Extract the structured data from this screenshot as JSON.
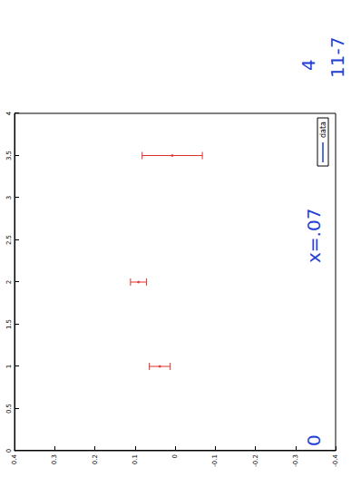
{
  "chart_data": {
    "type": "errorbar",
    "series": [
      {
        "name": "data",
        "color": "#e0302a",
        "marker": "point",
        "x": [
          1,
          2,
          3.5
        ],
        "values": [
          0.038,
          0.091,
          0.007
        ],
        "errors": [
          0.026,
          0.02,
          0.075
        ]
      }
    ],
    "xlim": [
      0,
      4
    ],
    "xticks": [
      0,
      0.5,
      1,
      1.5,
      2,
      2.5,
      3,
      3.5,
      4
    ],
    "ylim": [
      -0.4,
      0.4
    ],
    "yticks": [
      -0.4,
      -0.3,
      -0.2,
      -0.1,
      0,
      0.1,
      0.2,
      0.3,
      0.4
    ],
    "grid": false,
    "legend": "bottom-right",
    "annotations": [
      "11-7",
      "4",
      "x=.07",
      "0"
    ]
  }
}
